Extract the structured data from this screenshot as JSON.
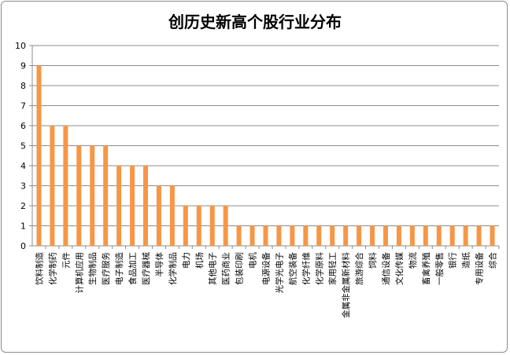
{
  "chart_data": {
    "type": "bar",
    "title": "创历史新高个股行业分布",
    "xlabel": "",
    "ylabel": "",
    "ylim": [
      0,
      10
    ],
    "yticks": [
      0,
      1,
      2,
      3,
      4,
      5,
      6,
      7,
      8,
      9,
      10
    ],
    "grid": true,
    "legend": "none",
    "bar_color": "#F79646",
    "categories": [
      "饮料制造",
      "化学制药",
      "元件",
      "计算机应用",
      "生物制品",
      "医疗服务",
      "电子制造",
      "食品加工",
      "医疗器械",
      "半导体",
      "化学制品",
      "电力",
      "机场",
      "其他电子",
      "医药商业",
      "包装印刷",
      "电机",
      "电源设备",
      "光学光电子",
      "航空装备",
      "化学纤维",
      "化学原料",
      "家用轻工",
      "金属非金属新材料",
      "旅游综合",
      "饲料",
      "通信设备",
      "文化传媒",
      "物流",
      "畜禽养殖",
      "一般零售",
      "银行",
      "造纸",
      "专用设备",
      "综合"
    ],
    "values": [
      9,
      6,
      6,
      5,
      5,
      5,
      4,
      4,
      4,
      3,
      3,
      2,
      2,
      2,
      2,
      1,
      1,
      1,
      1,
      1,
      1,
      1,
      1,
      1,
      1,
      1,
      1,
      1,
      1,
      1,
      1,
      1,
      1,
      1,
      1
    ]
  }
}
